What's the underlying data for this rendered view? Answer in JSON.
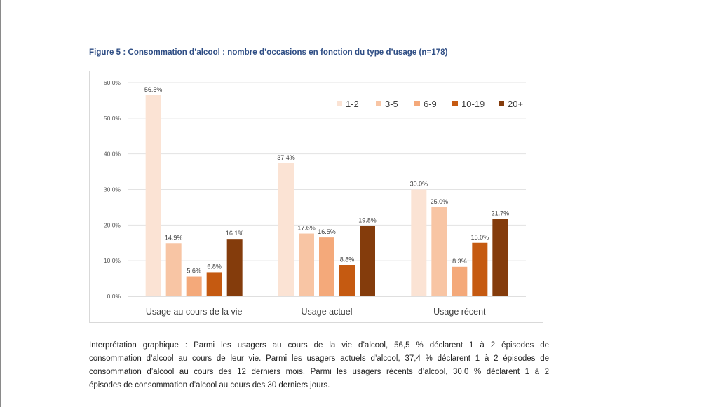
{
  "figure": {
    "title": "Figure 5 : Consommation d’alcool : nombre d’occasions en fonction du type d’usage (n=178)"
  },
  "chart_data": {
    "type": "bar",
    "categories": [
      "Usage au cours de la vie",
      "Usage actuel",
      "Usage récent"
    ],
    "series": [
      {
        "name": "1-2",
        "color": "#fbe3d4",
        "values": [
          56.5,
          37.4,
          30.0
        ],
        "labels": [
          "56.5%",
          "37.4%",
          "30.0%"
        ]
      },
      {
        "name": "3-5",
        "color": "#f8c5a4",
        "values": [
          14.9,
          17.6,
          25.0
        ],
        "labels": [
          "14.9%",
          "17.6%",
          "25.0%"
        ]
      },
      {
        "name": "6-9",
        "color": "#f4a97a",
        "values": [
          5.6,
          16.5,
          8.3
        ],
        "labels": [
          "5.6%",
          "16.5%",
          "8.3%"
        ]
      },
      {
        "name": "10-19",
        "color": "#c55a11",
        "values": [
          6.8,
          8.8,
          15.0
        ],
        "labels": [
          "6.8%",
          "8.8%",
          "15.0%"
        ]
      },
      {
        "name": "20+",
        "color": "#843c0c",
        "values": [
          16.1,
          19.8,
          21.7
        ],
        "labels": [
          "16.1%",
          "19.8%",
          "21.7%"
        ]
      }
    ],
    "ylim": [
      0,
      60
    ],
    "yticks": [
      "0.0%",
      "10.0%",
      "20.0%",
      "30.0%",
      "40.0%",
      "50.0%",
      "60.0%"
    ],
    "grid": true,
    "legend_position": "top-right"
  },
  "interpretation": {
    "lines": [
      "Interprétation graphique : Parmi les usagers au cours de la vie d’alcool, 56,5 % déclarent 1 à 2 épisodes de",
      "consommation d’alcool au cours de leur vie. Parmi les usagers actuels d’alcool, 37,4 % déclarent 1 à 2 épisodes de",
      "consommation d’alcool au cours des 12 derniers mois. Parmi les usagers récents d’alcool, 30,0 % déclarent 1 à 2",
      "épisodes de consommation d’alcool au cours des 30 derniers jours."
    ]
  }
}
